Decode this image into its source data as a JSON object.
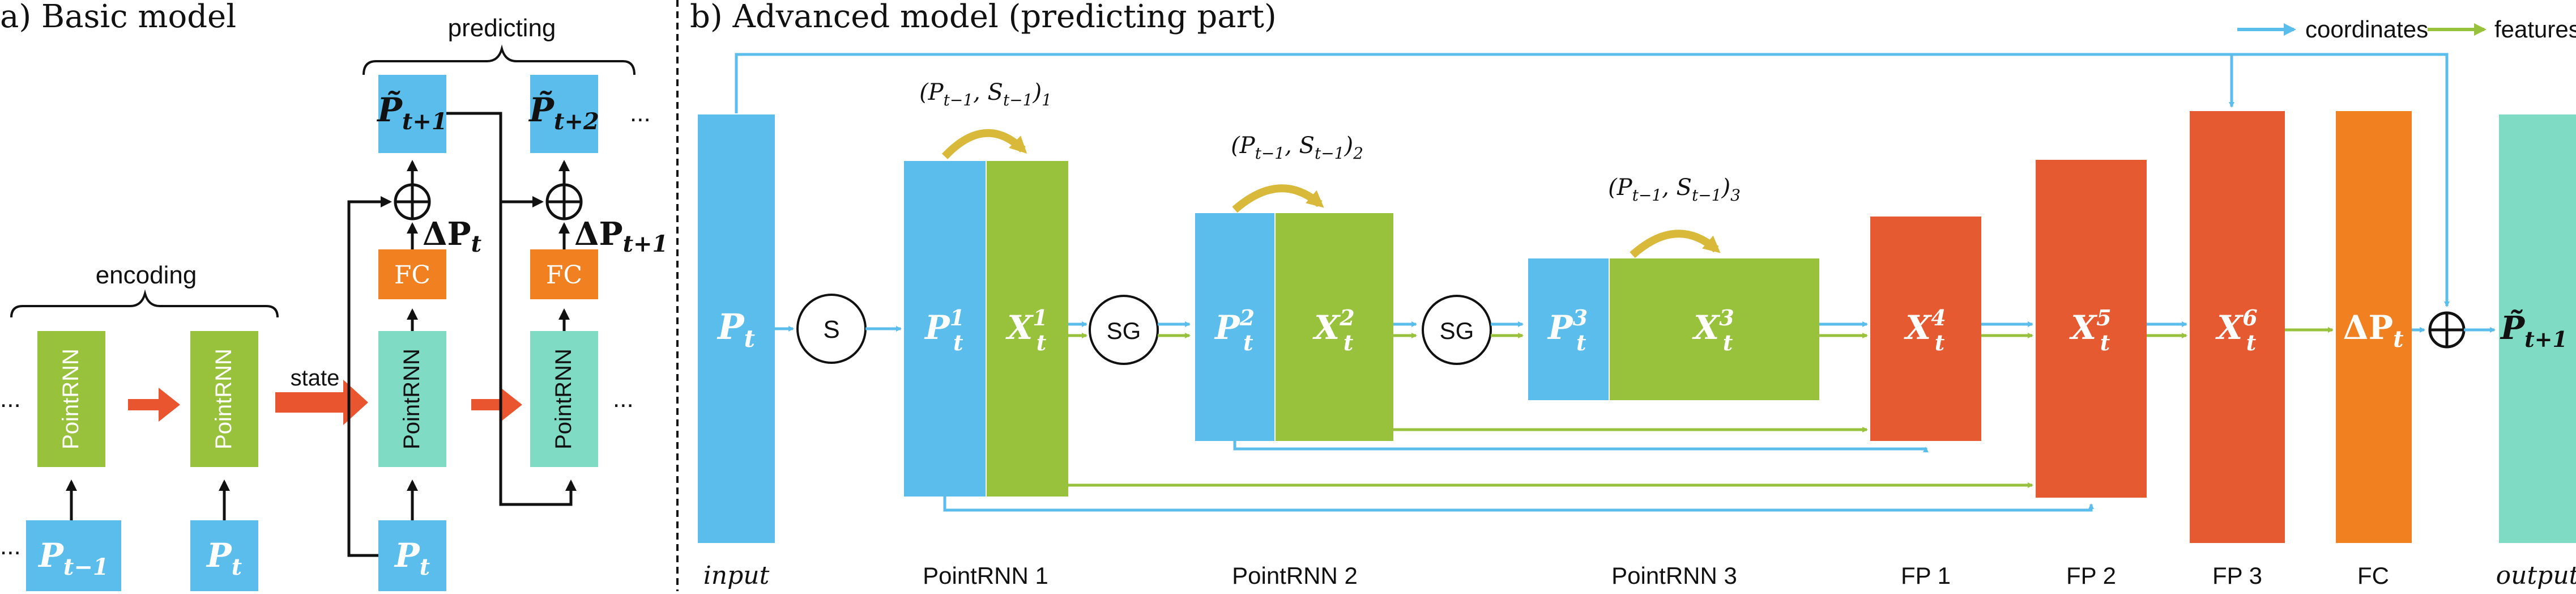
{
  "panel_a": {
    "title": "a) Basic model",
    "brace_encoding": "encoding",
    "brace_predicting": "predicting",
    "state_label": "state",
    "ellipsis": "...",
    "pointrnn": "PointRNN",
    "fc": "FC",
    "p_prev": "P",
    "p_prev_sub": "t−1",
    "p_t": "P",
    "p_t_sub": "t",
    "pred1": "P̃",
    "pred1_sub": "t+1",
    "pred2": "P̃",
    "pred2_sub": "t+2",
    "delta1": "ΔP",
    "delta1_sub": "t",
    "delta2": "ΔP",
    "delta2_sub": "t+1",
    "oplus": "⊕"
  },
  "panel_b": {
    "title": "b) Advanced model (predicting part)",
    "legend_coordinates": "coordinates",
    "legend_features": "features",
    "input_block": "P",
    "input_sub": "t",
    "s_node": "S",
    "sg_node": "SG",
    "p1": "P",
    "p1_sup": "1",
    "p1_sub": "t",
    "x1": "X",
    "x1_sup": "1",
    "x1_sub": "t",
    "p2": "P",
    "p2_sup": "2",
    "p2_sub": "t",
    "x2": "X",
    "x2_sup": "2",
    "x2_sub": "t",
    "p3": "P",
    "p3_sup": "3",
    "p3_sub": "t",
    "x3": "X",
    "x3_sup": "3",
    "x3_sub": "t",
    "x4": "X",
    "x4_sup": "4",
    "x4_sub": "t",
    "x5": "X",
    "x5_sup": "5",
    "x5_sub": "t",
    "x6": "X",
    "x6_sup": "6",
    "x6_sub": "t",
    "dp": "ΔP",
    "dp_sub": "t",
    "out": "P̃",
    "out_sub": "t+1",
    "state1": "(P",
    "state1_a": "t−1",
    "state1_mid": ", S",
    "state1_b": "t−1",
    "state1_end": ")",
    "state1_idx": "1",
    "state2_idx": "2",
    "state3_idx": "3",
    "labels": {
      "input": "input",
      "pointrnn1": "PointRNN 1",
      "pointrnn2": "PointRNN 2",
      "pointrnn3": "PointRNN 3",
      "fp1": "FP 1",
      "fp2": "FP 2",
      "fp3": "FP 3",
      "fc": "FC",
      "output": "output"
    }
  },
  "colors": {
    "blue": "#5BBDEB",
    "green": "#98C23C",
    "teal": "#7FDBC4",
    "orange": "#F08020",
    "red": "#E55A30",
    "gold": "#D9B93A",
    "arrow_red": "#E8552E"
  }
}
